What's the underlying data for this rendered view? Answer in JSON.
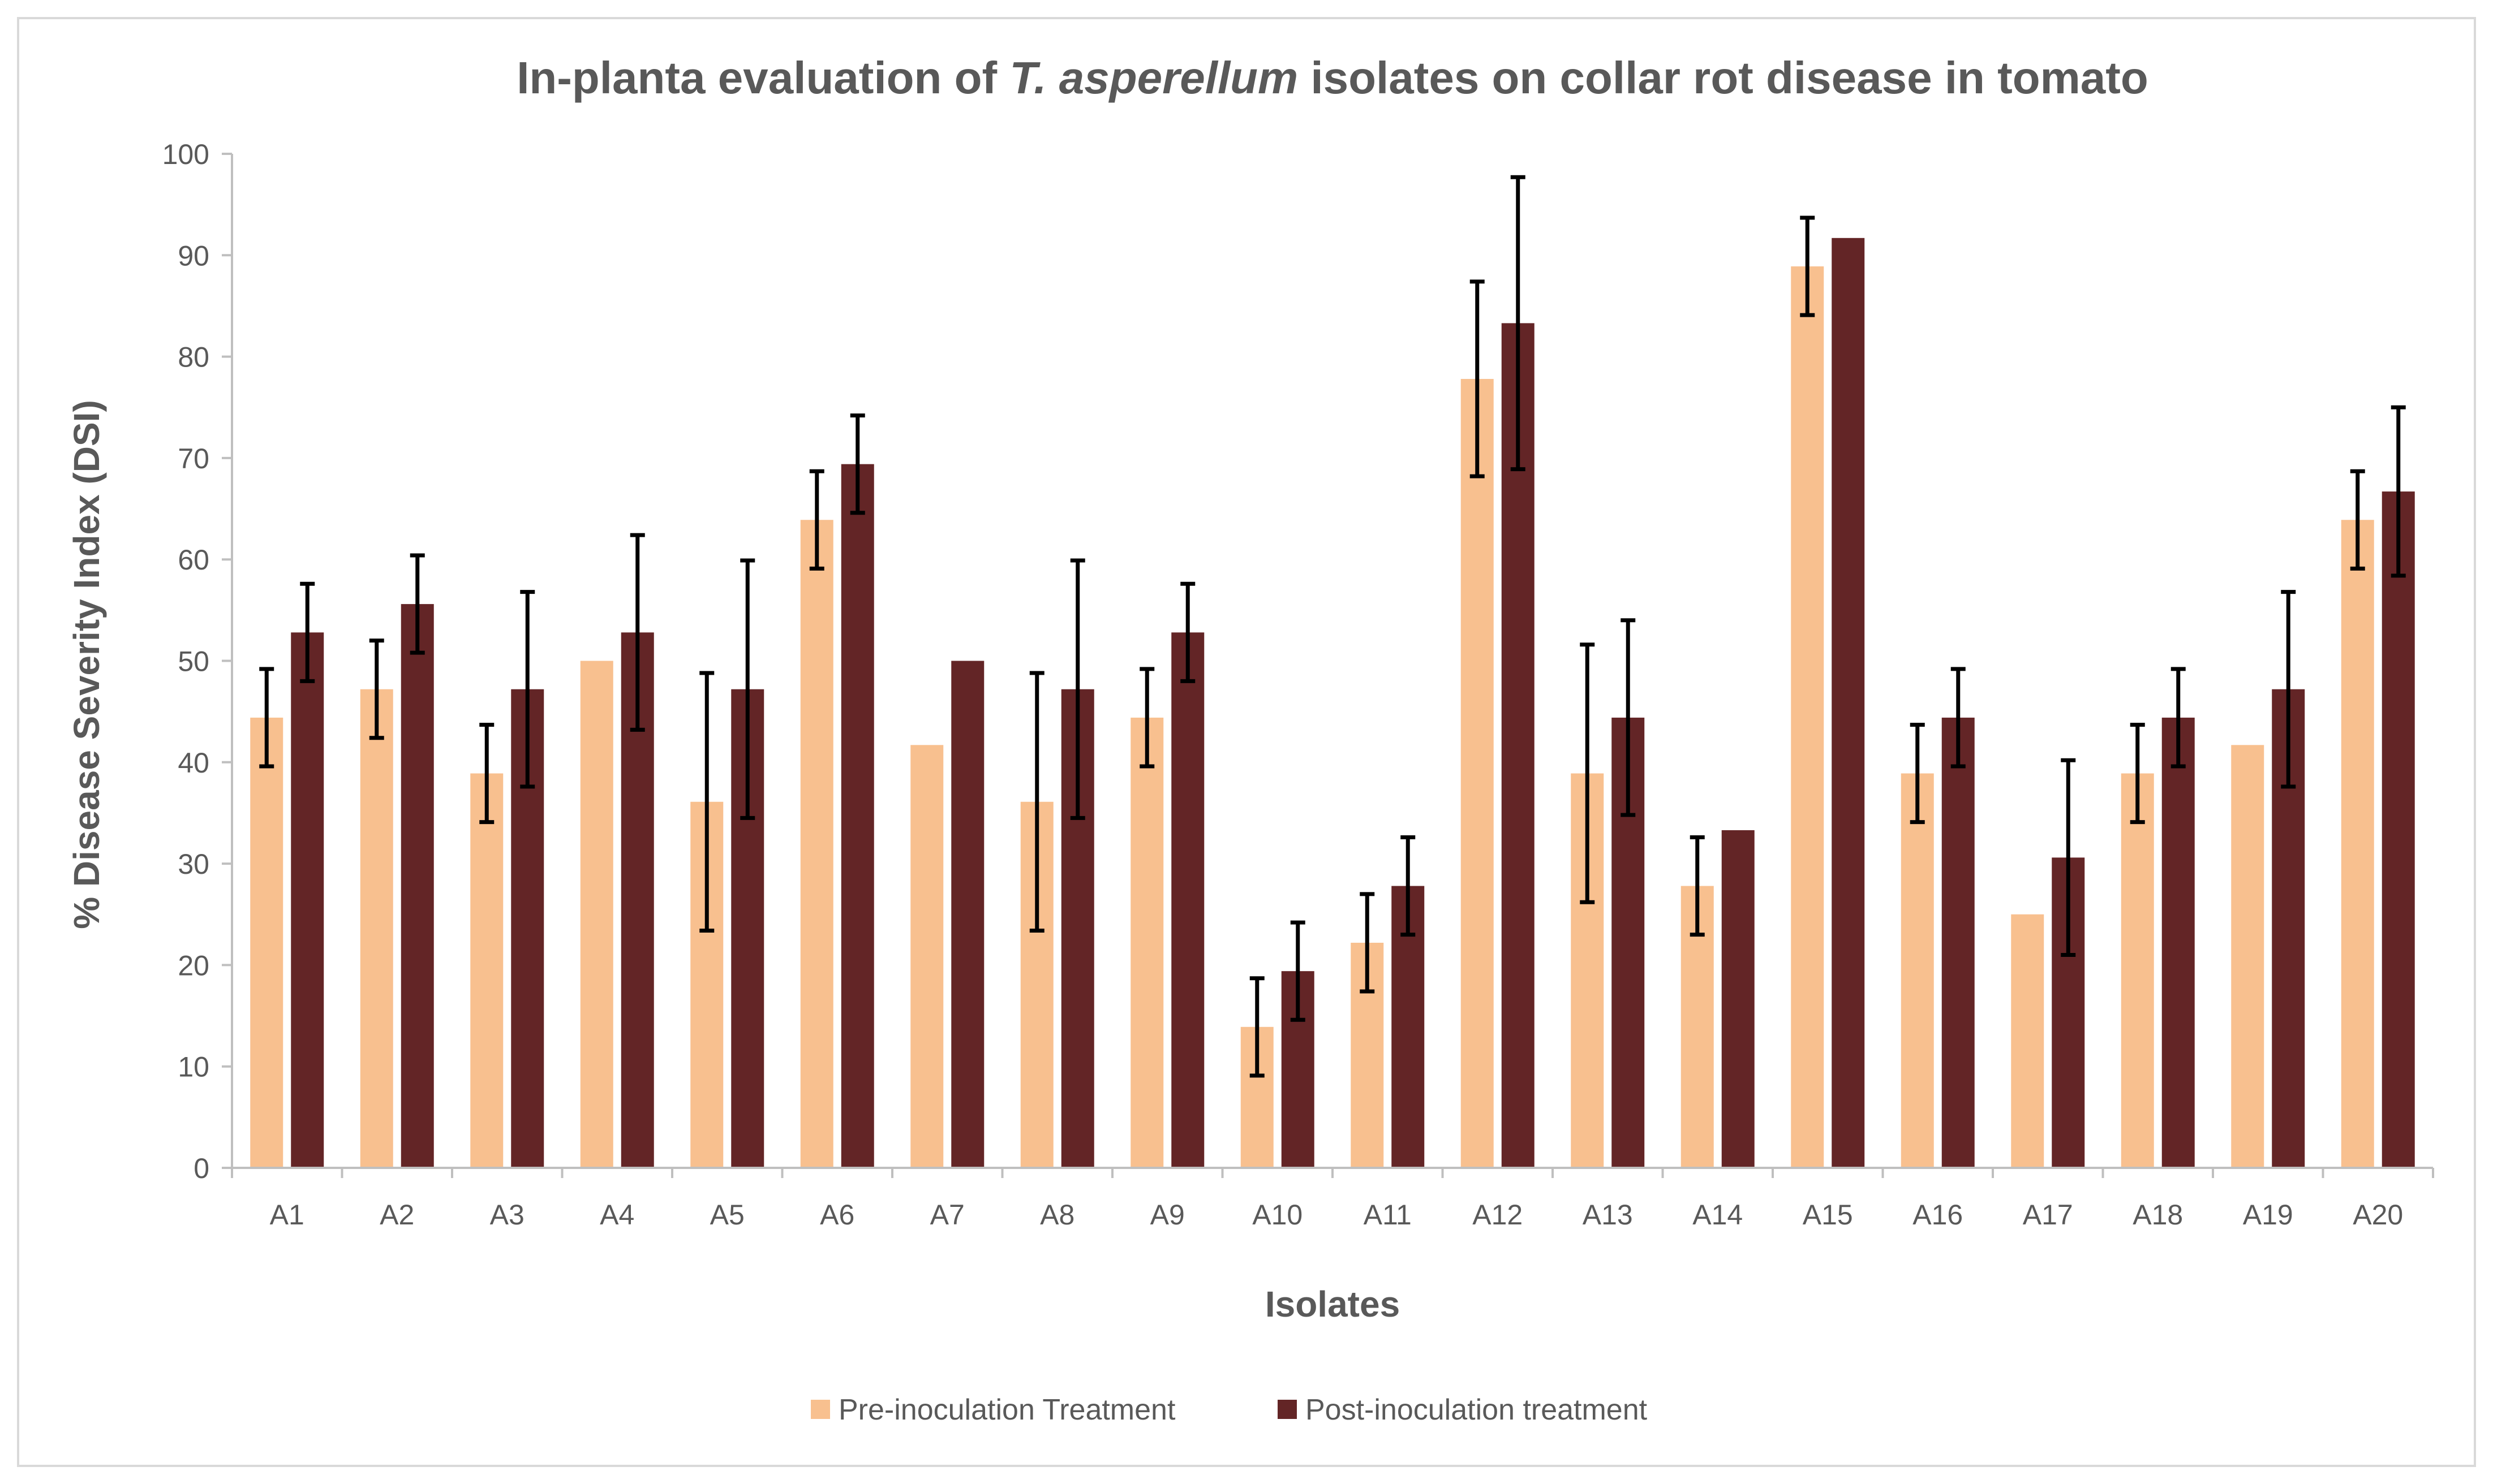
{
  "chart_data": {
    "type": "bar",
    "title_parts": {
      "prefix": "In-planta evaluation of ",
      "italic": "T. asperellum",
      "suffix": " isolates on collar rot disease in tomato"
    },
    "xlabel": "Isolates",
    "ylabel": "% Disease Severity Index (DSI)",
    "ylim": [
      0,
      100
    ],
    "yticks": [
      0,
      10,
      20,
      30,
      40,
      50,
      60,
      70,
      80,
      90,
      100
    ],
    "yticks_labels": [
      "0",
      "10",
      "20",
      "30",
      "40",
      "50",
      "60",
      "70",
      "80",
      "90",
      "100"
    ],
    "grid": false,
    "legend_position": "bottom",
    "categories": [
      "A1",
      "A2",
      "A3",
      "A4",
      "A5",
      "A6",
      "A7",
      "A8",
      "A9",
      "A10",
      "A11",
      "A12",
      "A13",
      "A14",
      "A15",
      "A16",
      "A17",
      "A18",
      "A19",
      "A20"
    ],
    "series": [
      {
        "name": "Pre-inoculation Treatment",
        "color": "#f8c08f",
        "values": [
          44.4,
          47.2,
          38.9,
          50.0,
          36.1,
          63.9,
          41.7,
          36.1,
          44.4,
          13.9,
          22.2,
          77.8,
          38.9,
          27.8,
          88.9,
          38.9,
          25.0,
          38.9,
          41.7,
          63.9
        ],
        "errors": [
          4.8,
          4.8,
          4.8,
          0,
          12.7,
          4.8,
          0,
          12.7,
          4.8,
          4.8,
          4.8,
          9.6,
          12.7,
          4.8,
          4.8,
          4.8,
          0,
          4.8,
          0,
          4.8
        ]
      },
      {
        "name": "Post-inoculation treatment",
        "color": "#632526",
        "values": [
          52.8,
          55.6,
          47.2,
          52.8,
          47.2,
          69.4,
          50.0,
          47.2,
          52.8,
          19.4,
          27.8,
          83.3,
          44.4,
          33.3,
          91.7,
          44.4,
          30.6,
          44.4,
          47.2,
          66.7
        ],
        "errors": [
          4.8,
          4.8,
          9.6,
          9.6,
          12.7,
          4.8,
          0,
          12.7,
          4.8,
          4.8,
          4.8,
          14.4,
          9.6,
          0,
          0,
          4.8,
          9.6,
          4.8,
          9.6,
          8.3
        ]
      }
    ]
  },
  "colors": {
    "text": "#595959",
    "axis": "#bfbfbf",
    "error_bar": "#000000",
    "frame": "#d9d9d9"
  }
}
